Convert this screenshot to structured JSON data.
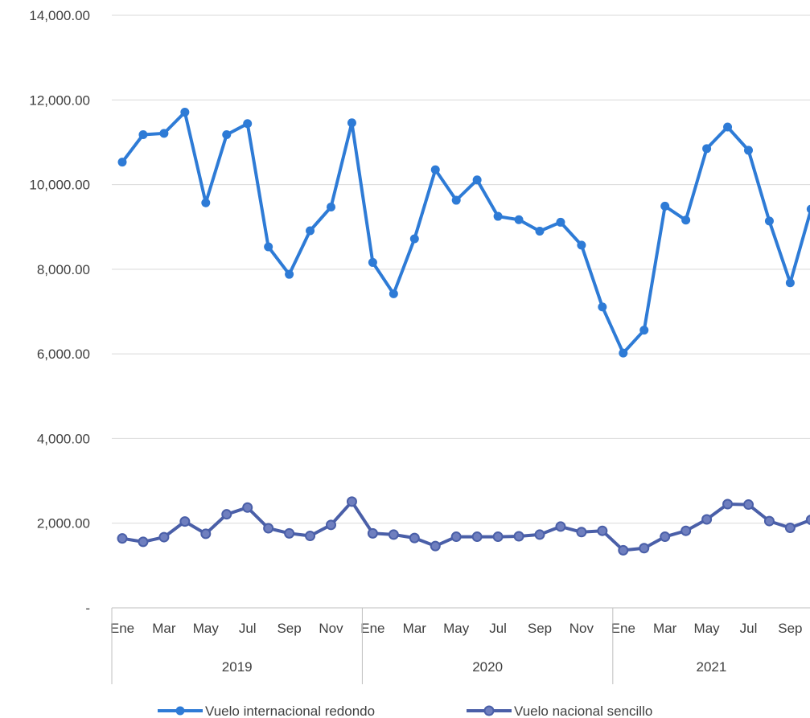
{
  "chart_data": {
    "type": "line",
    "title": "",
    "xlabel": "",
    "ylabel": "",
    "ylim": [
      0,
      14000
    ],
    "yticks": [
      0,
      2000,
      4000,
      6000,
      8000,
      10000,
      12000,
      14000
    ],
    "ytick_labels": [
      "-",
      "2,000.00",
      "4,000.00",
      "6,000.00",
      "8,000.00",
      "10,000.00",
      "12,000.00",
      "14,000.00"
    ],
    "x_month_labels": [
      "Ene",
      "Mar",
      "May",
      "Jul",
      "Sep",
      "Nov",
      "Ene",
      "Mar",
      "May",
      "Jul",
      "Sep",
      "Nov",
      "Ene",
      "Mar",
      "May",
      "Jul",
      "Sep"
    ],
    "x_month_label_indices": [
      0,
      2,
      4,
      6,
      8,
      10,
      12,
      14,
      16,
      18,
      20,
      22,
      24,
      26,
      28,
      30,
      32
    ],
    "years": [
      {
        "label": "2019",
        "start": 0,
        "end": 12
      },
      {
        "label": "2020",
        "start": 12,
        "end": 24
      },
      {
        "label": "2021",
        "start": 24,
        "end": 36
      }
    ],
    "grid": true,
    "legend_position": "bottom",
    "series": [
      {
        "name": "Vuelo internacional redondo",
        "color": "#2E7BD6",
        "values": [
          10530,
          11180,
          11210,
          11710,
          9570,
          11180,
          11440,
          8530,
          7880,
          8910,
          9470,
          11460,
          8160,
          7420,
          8720,
          10350,
          9630,
          10110,
          9250,
          9170,
          8900,
          9110,
          8570,
          7110,
          6020,
          6560,
          9490,
          9160,
          10850,
          11360,
          10810,
          9140,
          7680,
          9420
        ]
      },
      {
        "name": "Vuelo nacional sencillo",
        "color": "#4A5FA8",
        "values": [
          1640,
          1560,
          1670,
          2040,
          1750,
          2210,
          2370,
          1880,
          1760,
          1700,
          1960,
          2510,
          1760,
          1730,
          1650,
          1460,
          1680,
          1680,
          1680,
          1690,
          1730,
          1920,
          1790,
          1820,
          1360,
          1410,
          1680,
          1820,
          2090,
          2450,
          2440,
          2050,
          1890,
          2080
        ]
      }
    ]
  }
}
